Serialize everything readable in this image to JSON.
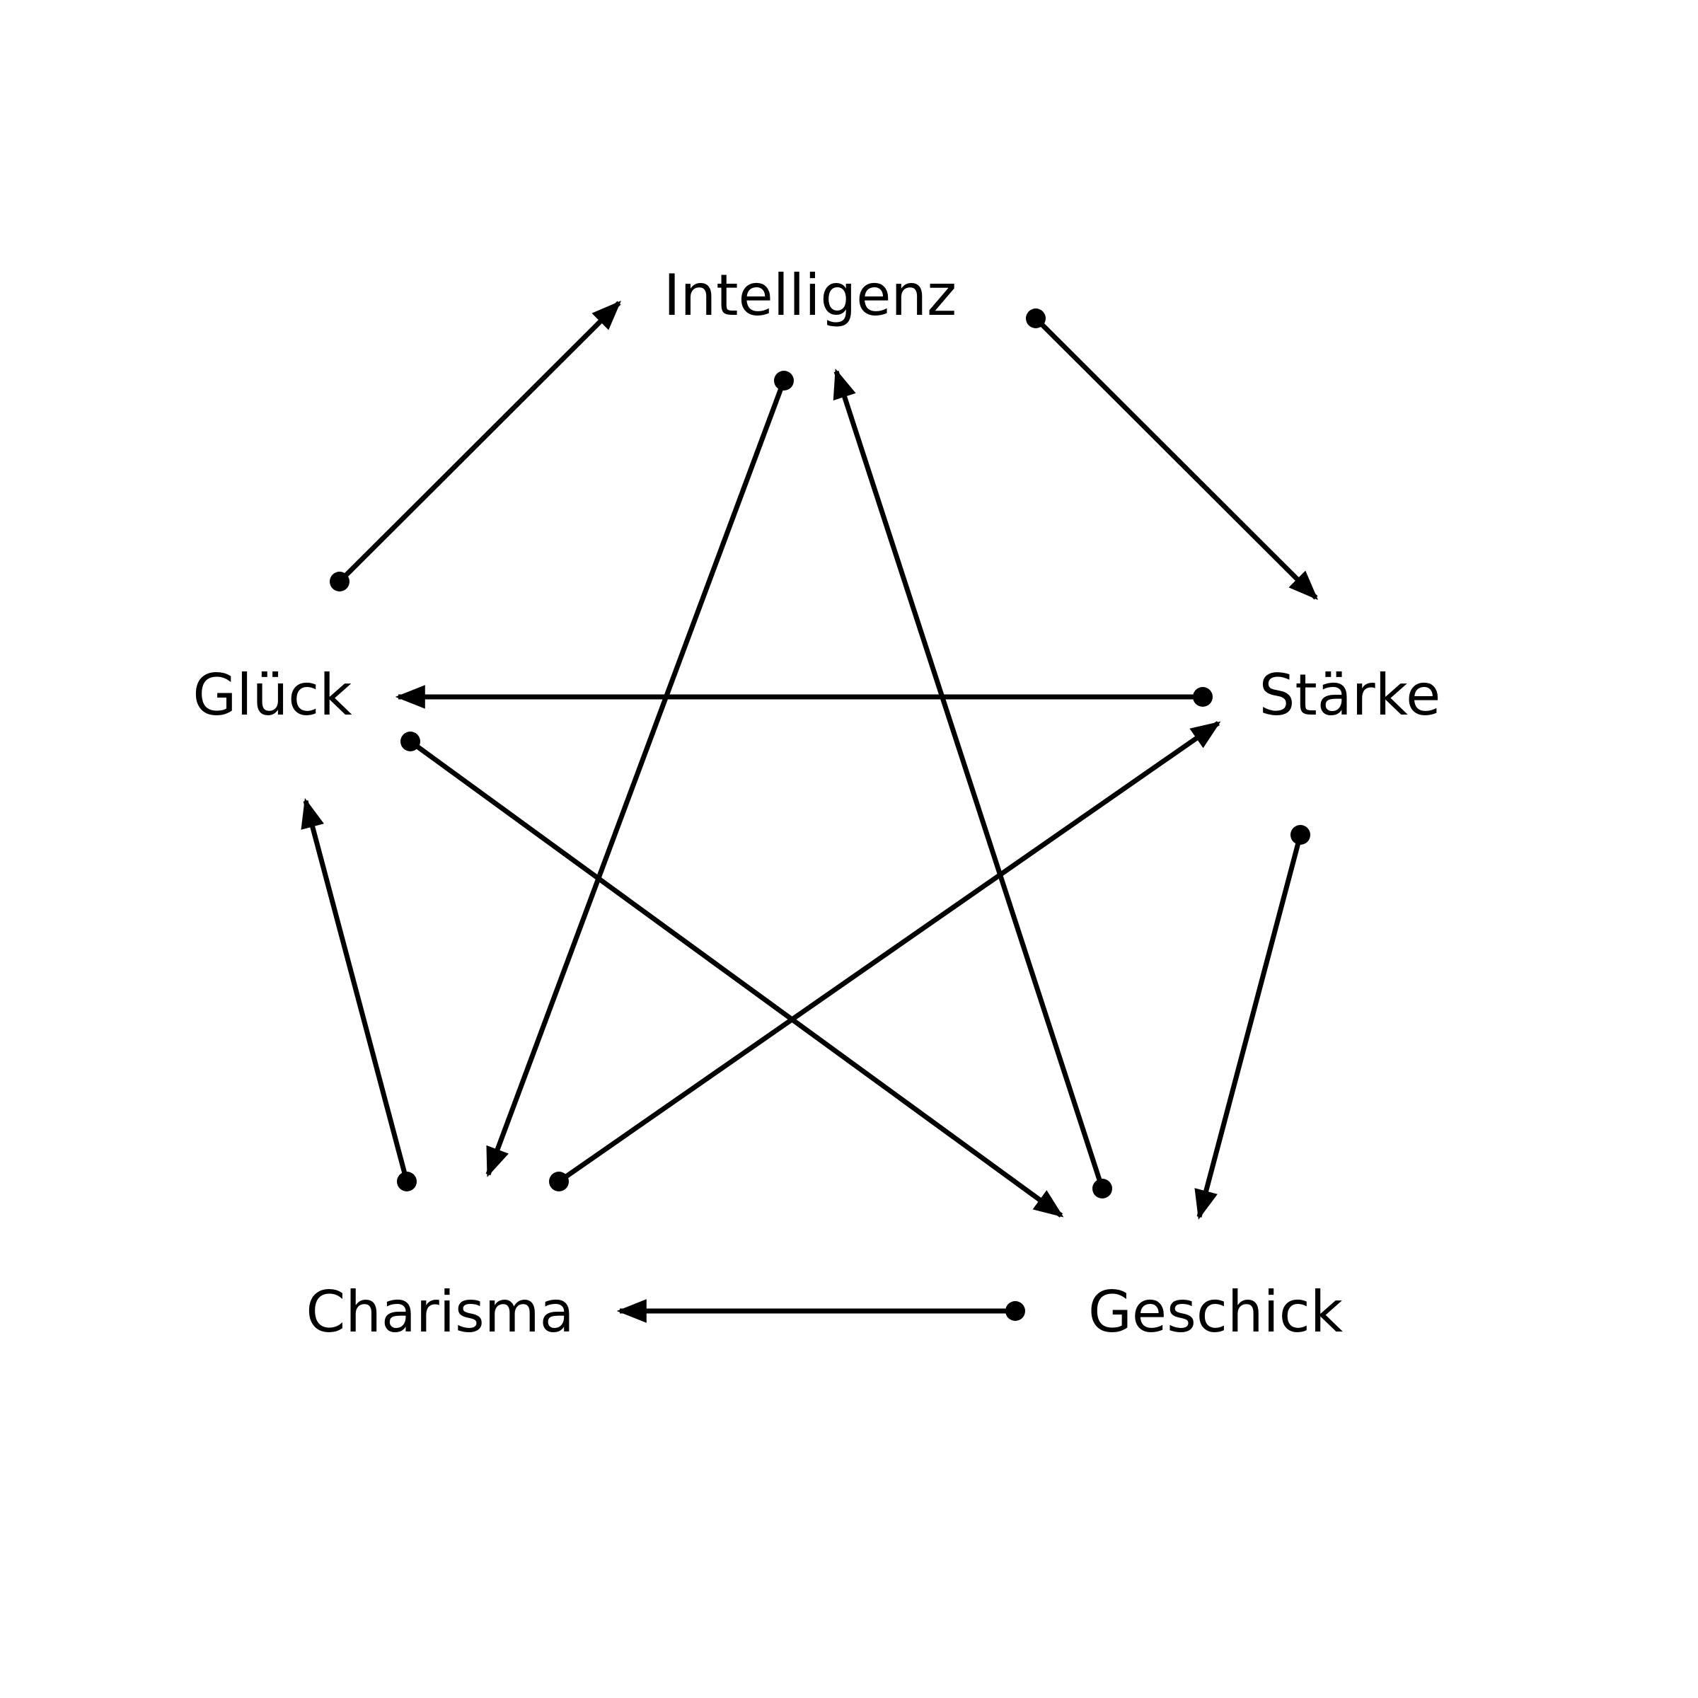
{
  "diagram": {
    "nodes": [
      {
        "id": "intelligenz",
        "label": "Intelligenz"
      },
      {
        "id": "staerke",
        "label": "Stärke"
      },
      {
        "id": "geschick",
        "label": "Geschick"
      },
      {
        "id": "charisma",
        "label": "Charisma"
      },
      {
        "id": "glueck",
        "label": "Glück"
      }
    ],
    "edges": [
      {
        "from": "intelligenz",
        "to": "staerke"
      },
      {
        "from": "staerke",
        "to": "geschick"
      },
      {
        "from": "geschick",
        "to": "charisma"
      },
      {
        "from": "charisma",
        "to": "glueck"
      },
      {
        "from": "glueck",
        "to": "intelligenz"
      },
      {
        "from": "intelligenz",
        "to": "charisma"
      },
      {
        "from": "geschick",
        "to": "intelligenz"
      },
      {
        "from": "staerke",
        "to": "glueck"
      },
      {
        "from": "charisma",
        "to": "staerke"
      },
      {
        "from": "glueck",
        "to": "geschick"
      }
    ],
    "colors": {
      "stroke": "#000000",
      "text": "#000000",
      "background": "#ffffff"
    }
  }
}
